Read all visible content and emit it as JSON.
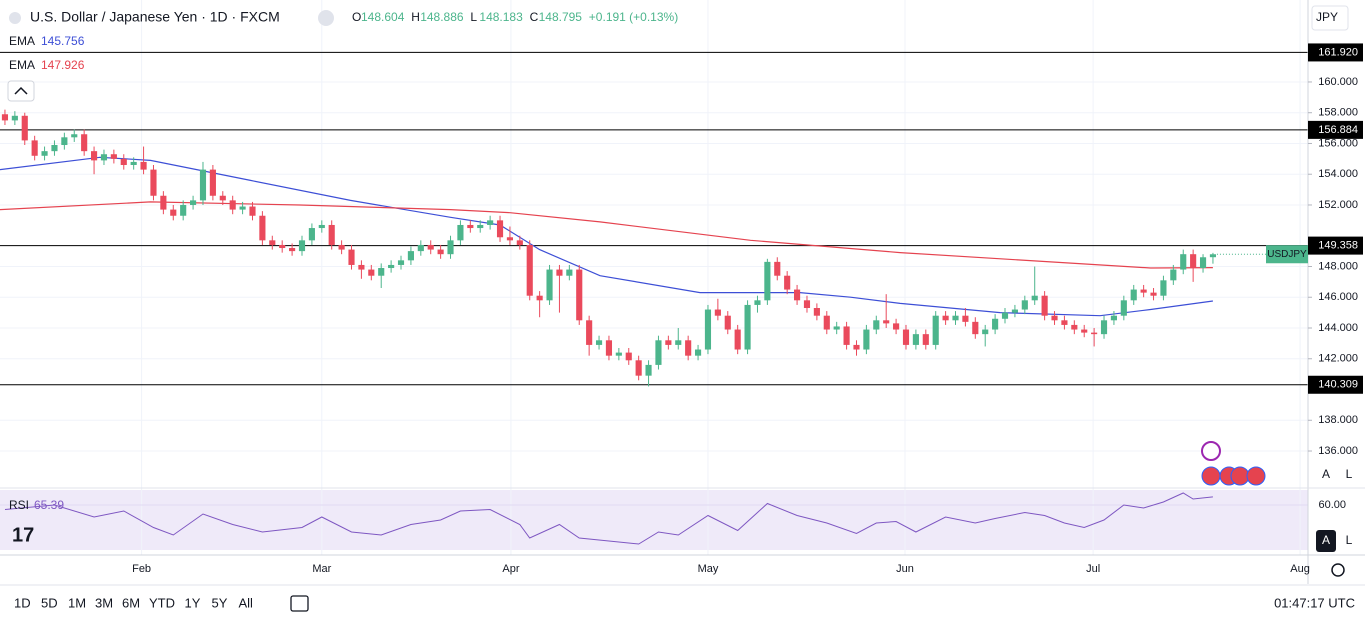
{
  "header": {
    "title": "U.S. Dollar / Japanese Yen · 1D · FXCM",
    "ohlc_labels": [
      "O",
      "H",
      "L",
      "C"
    ],
    "change": "+0.191 (+0.13%)",
    "currency": "JPY"
  },
  "toolbar": {
    "ranges": [
      "1D",
      "5D",
      "1M",
      "3M",
      "6M",
      "YTD",
      "1Y",
      "5Y",
      "All"
    ],
    "clock": "01:47:17 UTC",
    "scale_buttons": [
      "A",
      "L"
    ]
  },
  "chart_data": {
    "type": "candlestick",
    "symbol_label": "USDJPY",
    "up_color": "#4cb58c",
    "down_color": "#ea4a5c",
    "xlim": [
      -0.5,
      131.6
    ],
    "xticks": [
      {
        "value": 13.8,
        "label": "Feb"
      },
      {
        "value": 32.0,
        "label": "Mar"
      },
      {
        "value": 51.1,
        "label": "Apr"
      },
      {
        "value": 71.0,
        "label": "May"
      },
      {
        "value": 90.9,
        "label": "Jun"
      },
      {
        "value": 109.9,
        "label": "Jul"
      },
      {
        "value": 130.8,
        "label": "Aug"
      }
    ],
    "ylim": [
      133.79,
      165.33
    ],
    "yticks": [
      {
        "value": 136,
        "label": "136.000"
      },
      {
        "value": 138,
        "label": "138.000"
      },
      {
        "value": 142,
        "label": "142.000"
      },
      {
        "value": 144,
        "label": "144.000"
      },
      {
        "value": 146,
        "label": "146.000"
      },
      {
        "value": 148,
        "label": "148.000"
      },
      {
        "value": 152,
        "label": "152.000"
      },
      {
        "value": 154,
        "label": "154.000"
      },
      {
        "value": 156,
        "label": "156.000"
      },
      {
        "value": 158,
        "label": "158.000"
      },
      {
        "value": 160,
        "label": "160.000"
      }
    ],
    "grid": true,
    "levels": [
      {
        "value": 161.92,
        "label": "161.920"
      },
      156.884,
      149.358,
      140.309
    ],
    "candles": [
      [
        157.9,
        158.2,
        157.2,
        157.5
      ],
      [
        157.5,
        158.1,
        157.2,
        157.8
      ],
      [
        157.8,
        158.0,
        155.9,
        156.2
      ],
      [
        156.2,
        156.5,
        154.9,
        155.2
      ],
      [
        155.2,
        155.8,
        154.9,
        155.5
      ],
      [
        155.5,
        156.2,
        155.2,
        155.9
      ],
      [
        155.9,
        156.7,
        155.6,
        156.4
      ],
      [
        156.4,
        156.9,
        156.1,
        156.6
      ],
      [
        156.6,
        156.9,
        155.2,
        155.5
      ],
      [
        155.5,
        155.8,
        154.0,
        154.9
      ],
      [
        154.9,
        155.6,
        154.6,
        155.3
      ],
      [
        155.3,
        155.6,
        154.7,
        155.0
      ],
      [
        155.0,
        155.3,
        154.3,
        154.6
      ],
      [
        154.6,
        155.1,
        154.3,
        154.8
      ],
      [
        154.8,
        155.8,
        154.0,
        154.3
      ],
      [
        154.3,
        154.6,
        152.3,
        152.6
      ],
      [
        152.6,
        152.9,
        151.4,
        151.7
      ],
      [
        151.7,
        152.0,
        151.0,
        151.3
      ],
      [
        151.3,
        152.3,
        151.0,
        152.0
      ],
      [
        152.0,
        152.6,
        151.7,
        152.3
      ],
      [
        152.3,
        154.8,
        152.0,
        154.3
      ],
      [
        154.3,
        154.6,
        152.3,
        152.6
      ],
      [
        152.6,
        152.9,
        152.0,
        152.3
      ],
      [
        152.3,
        152.6,
        151.4,
        151.7
      ],
      [
        151.7,
        152.2,
        151.4,
        151.9
      ],
      [
        151.9,
        152.2,
        151.0,
        151.3
      ],
      [
        151.3,
        151.6,
        149.4,
        149.7
      ],
      [
        149.7,
        150.0,
        149.1,
        149.4
      ],
      [
        149.4,
        149.7,
        148.9,
        149.2
      ],
      [
        149.2,
        149.5,
        148.7,
        149.0
      ],
      [
        149.0,
        150.0,
        148.7,
        149.7
      ],
      [
        149.7,
        150.8,
        149.4,
        150.5
      ],
      [
        150.5,
        151.0,
        150.2,
        150.7
      ],
      [
        150.7,
        151.0,
        149.1,
        149.4
      ],
      [
        149.4,
        149.7,
        148.8,
        149.1
      ],
      [
        149.1,
        149.4,
        147.8,
        148.1
      ],
      [
        148.1,
        148.4,
        147.2,
        147.8
      ],
      [
        147.8,
        148.1,
        147.1,
        147.4
      ],
      [
        147.4,
        148.2,
        146.6,
        147.9
      ],
      [
        147.9,
        148.4,
        147.6,
        148.1
      ],
      [
        148.1,
        148.7,
        147.8,
        148.4
      ],
      [
        148.4,
        149.3,
        148.1,
        149.0
      ],
      [
        149.0,
        149.7,
        148.7,
        149.4
      ],
      [
        149.4,
        149.7,
        148.8,
        149.1
      ],
      [
        149.1,
        149.4,
        148.5,
        148.8
      ],
      [
        148.8,
        150.0,
        148.5,
        149.7
      ],
      [
        149.7,
        151.0,
        149.4,
        150.7
      ],
      [
        150.7,
        151.0,
        150.2,
        150.5
      ],
      [
        150.5,
        151.0,
        150.2,
        150.7
      ],
      [
        150.7,
        151.3,
        150.4,
        151.0
      ],
      [
        151.0,
        151.3,
        149.6,
        149.9
      ],
      [
        149.9,
        150.6,
        149.4,
        149.7
      ],
      [
        149.7,
        150.0,
        149.1,
        149.4
      ],
      [
        149.4,
        149.7,
        145.8,
        146.1
      ],
      [
        146.1,
        146.4,
        144.7,
        145.8
      ],
      [
        145.8,
        148.1,
        145.5,
        147.8
      ],
      [
        147.8,
        148.1,
        145.0,
        147.4
      ],
      [
        147.4,
        148.1,
        147.1,
        147.8
      ],
      [
        147.8,
        148.1,
        144.2,
        144.5
      ],
      [
        144.5,
        144.8,
        142.2,
        142.9
      ],
      [
        142.9,
        143.5,
        142.6,
        143.2
      ],
      [
        143.2,
        143.5,
        141.9,
        142.2
      ],
      [
        142.2,
        142.7,
        141.9,
        142.4
      ],
      [
        142.4,
        142.7,
        141.6,
        141.9
      ],
      [
        141.9,
        142.2,
        140.6,
        140.9
      ],
      [
        140.9,
        141.9,
        140.2,
        141.6
      ],
      [
        141.6,
        143.5,
        141.3,
        143.2
      ],
      [
        143.2,
        143.5,
        142.6,
        142.9
      ],
      [
        142.9,
        144.0,
        142.6,
        143.2
      ],
      [
        143.2,
        143.5,
        141.9,
        142.2
      ],
      [
        142.2,
        142.9,
        141.9,
        142.6
      ],
      [
        142.6,
        145.5,
        142.3,
        145.2
      ],
      [
        145.2,
        145.9,
        144.5,
        144.8
      ],
      [
        144.8,
        145.1,
        143.6,
        143.9
      ],
      [
        143.9,
        144.2,
        142.3,
        142.6
      ],
      [
        142.6,
        145.8,
        142.3,
        145.5
      ],
      [
        145.5,
        146.1,
        145.0,
        145.8
      ],
      [
        145.8,
        148.5,
        145.5,
        148.3
      ],
      [
        148.3,
        148.6,
        147.1,
        147.4
      ],
      [
        147.4,
        147.7,
        146.2,
        146.5
      ],
      [
        146.5,
        146.8,
        145.5,
        145.8
      ],
      [
        145.8,
        146.1,
        145.0,
        145.3
      ],
      [
        145.3,
        145.6,
        144.5,
        144.8
      ],
      [
        144.8,
        145.1,
        143.6,
        143.9
      ],
      [
        143.9,
        144.4,
        143.6,
        144.1
      ],
      [
        144.1,
        144.4,
        142.6,
        142.9
      ],
      [
        142.9,
        143.2,
        142.2,
        142.6
      ],
      [
        142.6,
        144.2,
        142.3,
        143.9
      ],
      [
        143.9,
        144.8,
        143.6,
        144.5
      ],
      [
        144.5,
        146.2,
        144.0,
        144.3
      ],
      [
        144.3,
        144.6,
        143.6,
        143.9
      ],
      [
        143.9,
        144.2,
        142.6,
        142.9
      ],
      [
        142.9,
        143.9,
        142.6,
        143.6
      ],
      [
        143.6,
        143.9,
        142.6,
        142.9
      ],
      [
        142.9,
        145.1,
        142.6,
        144.8
      ],
      [
        144.8,
        145.1,
        144.2,
        144.5
      ],
      [
        144.5,
        145.1,
        144.2,
        144.8
      ],
      [
        144.8,
        145.3,
        144.1,
        144.4
      ],
      [
        144.4,
        144.7,
        143.3,
        143.6
      ],
      [
        143.6,
        144.2,
        142.8,
        143.9
      ],
      [
        143.9,
        144.9,
        143.6,
        144.6
      ],
      [
        144.6,
        145.3,
        144.3,
        145.0
      ],
      [
        145.0,
        145.5,
        144.7,
        145.2
      ],
      [
        145.2,
        146.1,
        144.9,
        145.8
      ],
      [
        145.8,
        148.0,
        145.5,
        146.1
      ],
      [
        146.1,
        146.4,
        144.5,
        144.8
      ],
      [
        144.8,
        145.1,
        144.2,
        144.5
      ],
      [
        144.5,
        144.8,
        143.9,
        144.2
      ],
      [
        144.2,
        144.5,
        143.6,
        143.9
      ],
      [
        143.9,
        144.2,
        143.4,
        143.7
      ],
      [
        143.7,
        144.0,
        142.8,
        143.6
      ],
      [
        143.6,
        144.8,
        143.3,
        144.5
      ],
      [
        144.5,
        145.1,
        144.2,
        144.8
      ],
      [
        144.8,
        146.1,
        144.5,
        145.8
      ],
      [
        145.8,
        146.8,
        145.5,
        146.5
      ],
      [
        146.5,
        146.8,
        146.0,
        146.3
      ],
      [
        146.3,
        146.6,
        145.8,
        146.1
      ],
      [
        146.1,
        147.4,
        145.8,
        147.1
      ],
      [
        147.1,
        148.1,
        146.8,
        147.8
      ],
      [
        147.8,
        149.1,
        147.5,
        148.8
      ],
      [
        148.8,
        149.1,
        147.0,
        147.9
      ],
      [
        147.9,
        148.8,
        147.6,
        148.6
      ],
      [
        148.604,
        148.886,
        148.183,
        148.795
      ]
    ],
    "series": [
      {
        "name": "EMA",
        "color": "#3d4fd6",
        "x": [
          -0.5,
          9.6,
          14.7,
          24.8,
          34.9,
          45.0,
          50.0,
          54.0,
          60.1,
          70.2,
          80.3,
          85.4,
          90.4,
          100.5,
          110.6,
          115.7,
          122
        ],
        "values": [
          154.3,
          155.1,
          154.9,
          153.6,
          152.3,
          151.2,
          150.7,
          149.1,
          147.4,
          146.3,
          146.3,
          146.0,
          145.6,
          145.0,
          144.8,
          145.2,
          145.756
        ]
      },
      {
        "name": "EMA",
        "color": "#e5434f",
        "x": [
          -0.5,
          14.7,
          29.8,
          45.0,
          51.0,
          60.1,
          75.3,
          90.4,
          105.6,
          115.7,
          122
        ],
        "values": [
          151.7,
          152.2,
          152.0,
          151.7,
          151.5,
          150.9,
          149.7,
          148.9,
          148.3,
          147.9,
          147.926
        ]
      }
    ],
    "rsi": {
      "name": "RSI",
      "color": "#7e57c2",
      "ylim": [
        30,
        70
      ],
      "yticks": [
        {
          "value": 60,
          "label": "60.00"
        }
      ],
      "x": [
        0,
        5,
        9,
        12,
        15,
        17,
        20,
        23,
        26,
        30,
        32,
        35,
        38,
        41,
        44,
        46,
        49,
        52,
        53,
        56,
        58,
        61,
        64,
        66,
        68,
        71,
        74,
        76,
        77,
        80,
        83,
        86,
        88,
        90,
        92,
        95,
        98,
        100,
        103,
        105,
        107,
        109,
        111,
        113,
        115,
        117,
        119,
        120,
        122
      ],
      "values": [
        57,
        60,
        52,
        56,
        45,
        40,
        54,
        47,
        42,
        45,
        52,
        42,
        40,
        47,
        50,
        56,
        57,
        47,
        38,
        47,
        38,
        36,
        34,
        42,
        40,
        53,
        43,
        55,
        61,
        53,
        48,
        41,
        48,
        49,
        42,
        52,
        48,
        51,
        55,
        53,
        48,
        45,
        50,
        60,
        58,
        62,
        68,
        64,
        65.39
      ]
    }
  }
}
